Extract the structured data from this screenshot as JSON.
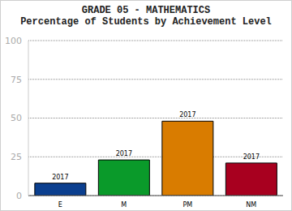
{
  "chart_data": {
    "type": "bar",
    "title": "GRADE 05 - MATHEMATICS",
    "subtitle": "Percentage of Students by Achievement Level",
    "categories": [
      "E",
      "M",
      "PM",
      "NM"
    ],
    "series": [
      {
        "name": "2017",
        "values": [
          8,
          23,
          48,
          21
        ],
        "colors": [
          "#0b3f8f",
          "#0a9a2a",
          "#d97c00",
          "#a8001f"
        ]
      }
    ],
    "ylim": [
      0,
      100
    ],
    "yticks": [
      0,
      25,
      50,
      75,
      100
    ],
    "grid": true
  }
}
